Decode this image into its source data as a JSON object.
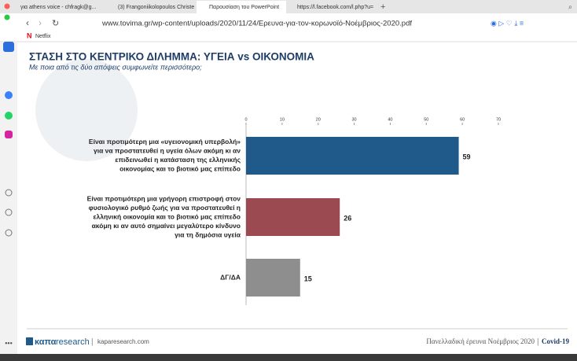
{
  "browser": {
    "tabs": [
      "για athens voice - chfragk@g...",
      "(3) Frangoniikolopoulos Christe",
      "Παρουσίαση του PowerPoint",
      "https://l.facebook.com/l.php?u="
    ],
    "url": "www.tovima.gr/wp-content/uploads/2020/11/24/Ερευνα-για-τον-κορωνοϊό-Νοέμβριος-2020.pdf",
    "bookmark": "Netflix"
  },
  "chart_data": {
    "type": "bar",
    "orientation": "horizontal",
    "title": "ΣΤΑΣΗ ΣΤΟ ΚΕΝΤΡΙΚΟ ΔΙΛΗΜΜΑ: ΥΓΕΙΑ vs ΟΙΚΟΝΟΜΙΑ",
    "subtitle": "Με ποια από τις δύο απόψεις συμφωνείτε περισσότερο;",
    "categories": [
      [
        "Είναι προτιμότερη μια «υγειονομική υπερβολή»",
        "για να προστατευθεί η υγεία όλων ακόμη κι αν",
        "επιδεινωθεί η κατάσταση της ελληνικής",
        "οικονομίας και το βιοτικό μας επίπεδο"
      ],
      [
        "Είναι προτιμότερη μια γρήγορη επιστροφή στον",
        "φυσιολογικό ρυθμό ζωής για να προστατευθεί η",
        "ελληνική οικονομία και το βιοτικό μας επίπεδο",
        "ακόμη κι αν αυτό σημαίνει μεγαλύτερο κίνδυνο",
        "για τη δημόσια υγεία"
      ],
      [
        "ΔΓ/ΔΑ"
      ]
    ],
    "values": [
      59,
      26,
      15
    ],
    "colors": [
      "#1f5a8a",
      "#9b4a52",
      "#8e8e8e"
    ],
    "xlim": [
      0,
      70
    ],
    "xticks": [
      0,
      10,
      20,
      30,
      40,
      50,
      60,
      70
    ]
  },
  "footer": {
    "brand_bold": "καπα",
    "brand_light": "research",
    "site": "kaparesearch.com",
    "survey": "Πανελλαδική έρευνα Νοέμβριος 2020",
    "tag": "Covid-19"
  }
}
